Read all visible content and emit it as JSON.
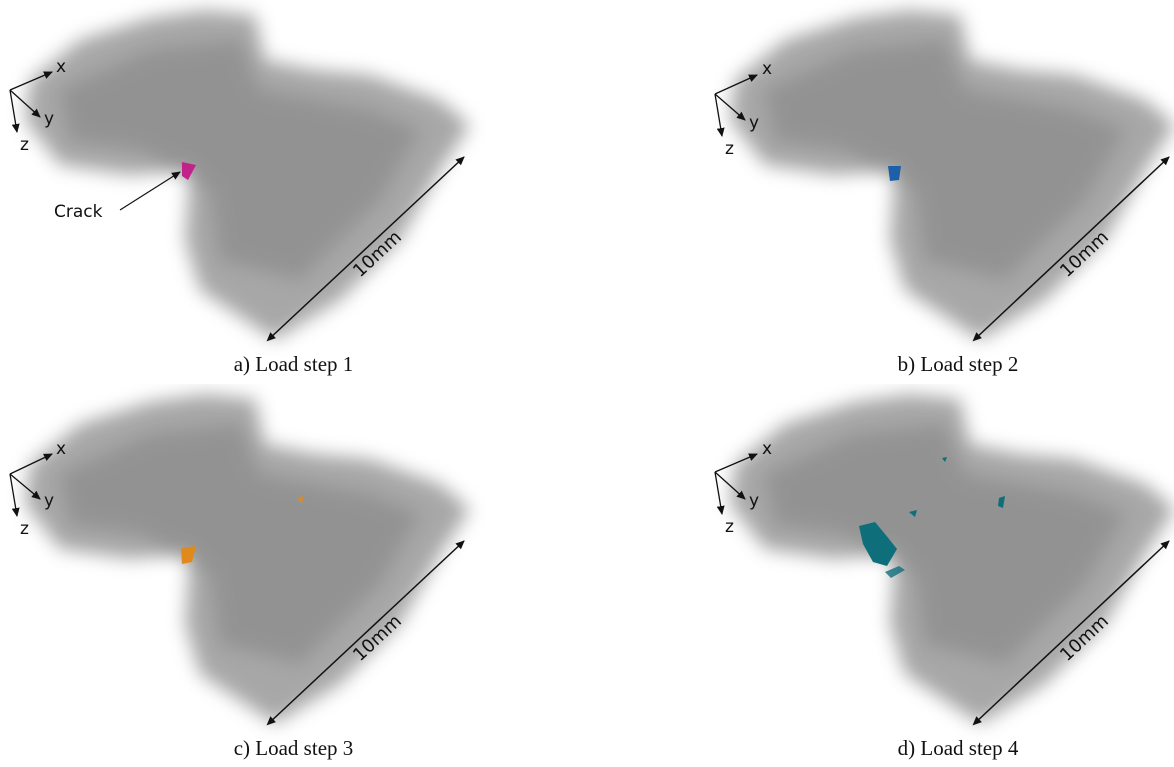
{
  "panels": [
    {
      "caption": "a) Load step 1",
      "crack_color": "#c0238a",
      "crack_label": "Crack"
    },
    {
      "caption": "b) Load step 2",
      "crack_color": "#1d5fa8",
      "crack_label": ""
    },
    {
      "caption": "c) Load step 3",
      "crack_color": "#e08a1e",
      "crack_label": ""
    },
    {
      "caption": "d) Load step 4",
      "crack_color": "#0e6f7a",
      "crack_label": ""
    }
  ],
  "axes": {
    "x": "x",
    "y": "y",
    "z": "z"
  },
  "scale_label": "10mm"
}
